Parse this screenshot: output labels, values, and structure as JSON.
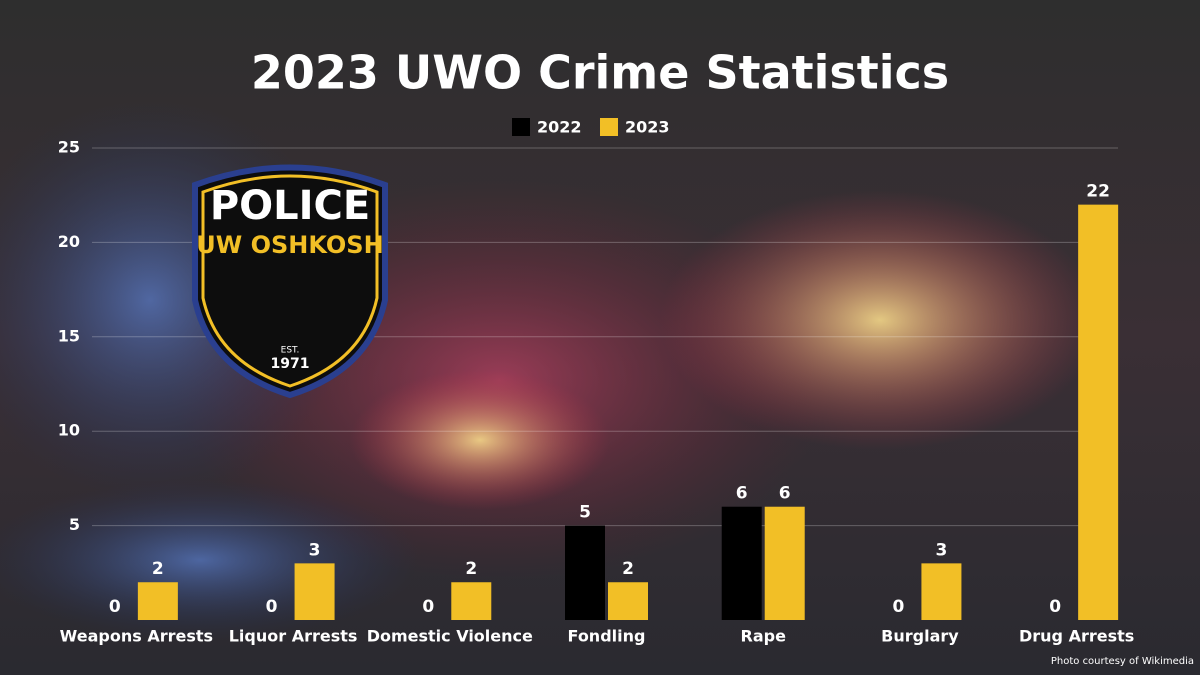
{
  "chart_data": {
    "type": "bar",
    "title": "2023 UWO Crime Statistics",
    "categories": [
      "Weapons Arrests",
      "Liquor Arrests",
      "Domestic Violence",
      "Fondling",
      "Rape",
      "Burglary",
      "Drug Arrests"
    ],
    "series": [
      {
        "name": "2022",
        "color": "#000000",
        "values": [
          0,
          0,
          0,
          5,
          6,
          0,
          0
        ]
      },
      {
        "name": "2023",
        "color": "#f2bf26",
        "values": [
          2,
          3,
          2,
          2,
          6,
          3,
          22
        ]
      }
    ],
    "ylim": [
      0,
      25
    ],
    "yticks": [
      5,
      10,
      15,
      20,
      25
    ],
    "grid": true,
    "legend": "top"
  },
  "logo": {
    "line1": "POLICE",
    "line2": "UW OSHKOSH",
    "est": "EST.",
    "year": "1971"
  },
  "credit": "Photo courtesy of Wikimedia"
}
